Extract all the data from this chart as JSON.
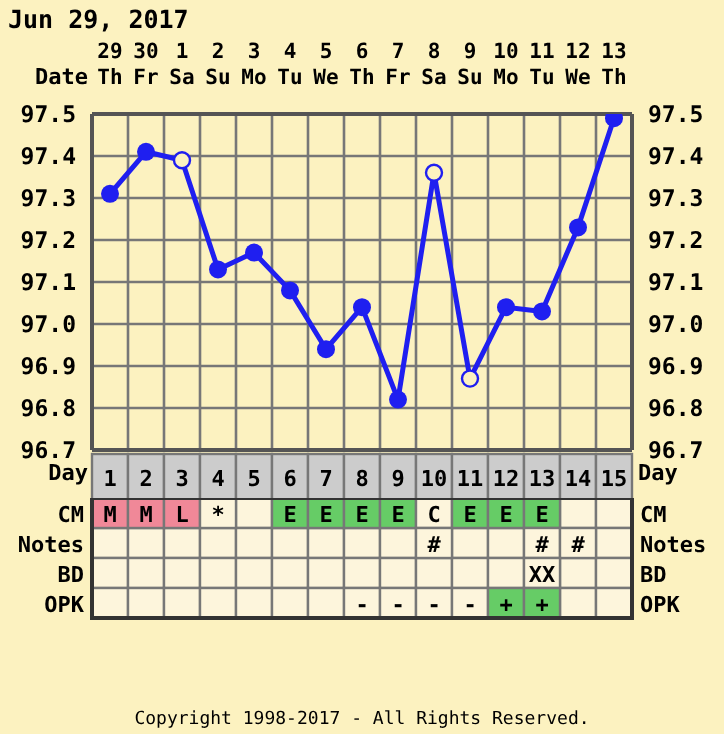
{
  "chart_data": [
    {
      "type": "line",
      "title": "Jun 29, 2017",
      "xlabel": "Day",
      "x2label": "Date",
      "x": [
        1,
        2,
        3,
        4,
        5,
        6,
        7,
        8,
        9,
        10,
        11,
        12,
        13,
        14,
        15
      ],
      "series": [
        {
          "color": "#1f1ff0",
          "values": [
            97.31,
            97.41,
            97.39,
            97.13,
            97.17,
            97.08,
            96.94,
            97.04,
            96.82,
            97.36,
            96.87,
            97.04,
            97.03,
            97.23,
            97.49
          ]
        },
        {
          "type": "scatter",
          "color": "#1f1ff0",
          "values": [
            null,
            null,
            97.39,
            null,
            null,
            null,
            null,
            null,
            null,
            97.36,
            96.87,
            null,
            null,
            null,
            null
          ]
        }
      ],
      "xlim": [
        0.5,
        15.5
      ],
      "xticks": [
        1,
        2,
        3,
        4,
        5,
        6,
        7,
        8,
        9,
        10,
        11,
        12,
        13,
        14,
        15
      ],
      "x2lim": [
        "2017-06-28T12:00",
        "2017-07-13T12:00"
      ],
      "x2ticks": [
        {
          "value": "2017-06-29",
          "label": "29\nTh"
        },
        {
          "value": "2017-06-30",
          "label": "30\nFr"
        },
        {
          "value": "2017-07-01",
          "label": "1\nSa"
        },
        {
          "value": "2017-07-02",
          "label": "2\nSu"
        },
        {
          "value": "2017-07-03",
          "label": "3\nMo"
        },
        {
          "value": "2017-07-04",
          "label": "4\nTu"
        },
        {
          "value": "2017-07-05",
          "label": "5\nWe"
        },
        {
          "value": "2017-07-06",
          "label": "6\nTh"
        },
        {
          "value": "2017-07-07",
          "label": "7\nFr"
        },
        {
          "value": "2017-07-08",
          "label": "8\nSa"
        },
        {
          "value": "2017-07-09",
          "label": "9\nSu"
        },
        {
          "value": "2017-07-10",
          "label": "10\nMo"
        },
        {
          "value": "2017-07-11",
          "label": "11\nTu"
        },
        {
          "value": "2017-07-12",
          "label": "12\nWe"
        },
        {
          "value": "2017-07-13",
          "label": "13\nTh"
        }
      ],
      "ylim": [
        96.7,
        97.5
      ],
      "yticks": [
        96.7,
        96.8,
        96.9,
        {
          "value": 97,
          "label": "97.0"
        },
        97.1,
        97.2,
        97.3,
        97.4,
        97.5
      ],
      "y2lim": [
        96.7,
        97.5
      ],
      "y2ticks": [
        96.7,
        96.8,
        96.9,
        {
          "value": 97,
          "label": "97.0"
        },
        97.1,
        97.2,
        97.3,
        97.4,
        97.5
      ],
      "grid": true,
      "marker": "circle",
      "line_style": "solid"
    },
    {
      "type": "other",
      "y_categories": [
        "CM",
        "Notes",
        "BD",
        "OPK"
      ],
      "y2_categories": [
        "CM",
        "Notes",
        "BD",
        "OPK"
      ],
      "cell_labels": [
        [
          "M",
          "M",
          "L",
          "*",
          null,
          "E",
          "E",
          "E",
          "E",
          "C",
          "E",
          "E",
          "E",
          null,
          null
        ],
        [
          null,
          null,
          null,
          null,
          null,
          null,
          null,
          null,
          null,
          "#",
          null,
          null,
          "#",
          "#",
          null
        ],
        [
          null,
          null,
          null,
          null,
          null,
          null,
          null,
          null,
          null,
          null,
          null,
          null,
          "XX",
          null,
          null
        ],
        [
          null,
          null,
          null,
          null,
          null,
          null,
          null,
          "-",
          "-",
          "-",
          "-",
          "+",
          "+",
          null,
          null
        ]
      ],
      "colors": [
        [
          "#f08898",
          "#f08898",
          "#f08898",
          "#fdf5dc",
          "#fdf5dc",
          "#66cc66",
          "#66cc66",
          "#66cc66",
          "#66cc66",
          "#fdf5dc",
          "#66cc66",
          "#66cc66",
          "#66cc66",
          "#fdf5dc",
          "#fdf5dc"
        ],
        [
          "#fdf5dc",
          "#fdf5dc",
          "#fdf5dc",
          "#fdf5dc",
          "#fdf5dc",
          "#fdf5dc",
          "#fdf5dc",
          "#fdf5dc",
          "#fdf5dc",
          "#fdf5dc",
          "#fdf5dc",
          "#fdf5dc",
          "#fdf5dc",
          "#fdf5dc",
          "#fdf5dc"
        ],
        [
          "#fdf5dc",
          "#fdf5dc",
          "#fdf5dc",
          "#fdf5dc",
          "#fdf5dc",
          "#fdf5dc",
          "#fdf5dc",
          "#fdf5dc",
          "#fdf5dc",
          "#fdf5dc",
          "#fdf5dc",
          "#fdf5dc",
          "#fdf5dc",
          "#fdf5dc",
          "#fdf5dc"
        ],
        [
          "#fdf5dc",
          "#fdf5dc",
          "#fdf5dc",
          "#fdf5dc",
          "#fdf5dc",
          "#fdf5dc",
          "#fdf5dc",
          "#fdf5dc",
          "#fdf5dc",
          "#fdf5dc",
          "#fdf5dc",
          "#66cc66",
          "#66cc66",
          "#fdf5dc",
          "#fdf5dc"
        ]
      ],
      "annotations": [
        "Copyright 1998-2017 - All Rights Reserved."
      ]
    }
  ]
}
